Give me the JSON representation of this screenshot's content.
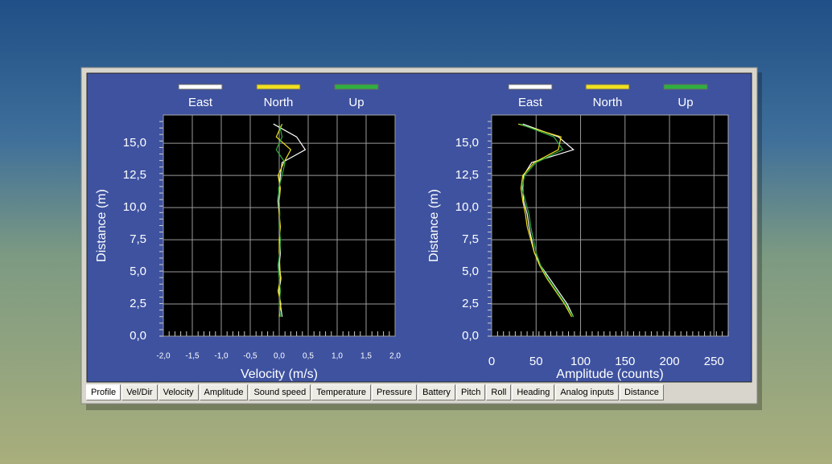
{
  "chart_data": [
    {
      "type": "line",
      "xlabel": "Velocity (m/s)",
      "ylabel": "Distance (m)",
      "y": [
        1.5,
        2.5,
        3.5,
        4.5,
        5.5,
        6.5,
        7.5,
        8.5,
        9.5,
        10.5,
        11.5,
        12.5,
        13.5,
        14.5,
        15.5,
        16.5
      ],
      "series": [
        {
          "name": "East",
          "color": "#ffffff",
          "values": [
            0.05,
            0.02,
            0.0,
            0.03,
            0.0,
            0.02,
            0.01,
            0.0,
            0.0,
            -0.02,
            0.0,
            0.02,
            0.05,
            0.45,
            0.3,
            -0.1
          ]
        },
        {
          "name": "North",
          "color": "#f0e020",
          "values": [
            0.0,
            0.03,
            -0.02,
            0.02,
            0.01,
            0.0,
            0.0,
            0.02,
            0.0,
            0.0,
            0.02,
            -0.02,
            0.08,
            0.2,
            -0.05,
            0.05
          ]
        },
        {
          "name": "Up",
          "color": "#30b040",
          "values": [
            0.02,
            0.0,
            0.02,
            0.0,
            -0.02,
            0.01,
            0.02,
            0.0,
            0.01,
            0.0,
            -0.01,
            0.05,
            0.1,
            -0.05,
            0.05,
            0.0
          ]
        }
      ],
      "xlim": [
        -2,
        2
      ],
      "xticks": [
        {
          "value": -2,
          "label": "-2,0"
        },
        {
          "value": -1.5,
          "label": "-1,5"
        },
        {
          "value": -1,
          "label": "-1,0"
        },
        {
          "value": -0.5,
          "label": "-0,5"
        },
        {
          "value": 0,
          "label": "0,0"
        },
        {
          "value": 0.5,
          "label": "0,5"
        },
        {
          "value": 1,
          "label": "1,0"
        },
        {
          "value": 1.5,
          "label": "1,5"
        },
        {
          "value": 2,
          "label": "2,0"
        }
      ],
      "ylim": [
        0,
        17.2
      ],
      "yticks": [
        {
          "value": 0,
          "label": "0,0"
        },
        {
          "value": 2.5,
          "label": "2,5"
        },
        {
          "value": 5,
          "label": "5,0"
        },
        {
          "value": 7.5,
          "label": "7,5"
        },
        {
          "value": 10,
          "label": "10,0"
        },
        {
          "value": 12.5,
          "label": "12,5"
        },
        {
          "value": 15,
          "label": "15,0"
        }
      ],
      "grid": true
    },
    {
      "type": "line",
      "xlabel": "Amplitude (counts)",
      "ylabel": "Distance (m)",
      "y": [
        1.5,
        2.5,
        3.5,
        4.5,
        5.5,
        6.5,
        7.5,
        8.5,
        9.5,
        10.5,
        11.5,
        12.5,
        13.5,
        14.5,
        15.5,
        16.5
      ],
      "series": [
        {
          "name": "East",
          "color": "#ffffff",
          "values": [
            92,
            85,
            75,
            65,
            55,
            48,
            45,
            42,
            40,
            36,
            35,
            36,
            45,
            92,
            75,
            35
          ]
        },
        {
          "name": "North",
          "color": "#f0e020",
          "values": [
            90,
            82,
            72,
            62,
            54,
            48,
            44,
            40,
            38,
            35,
            33,
            35,
            48,
            75,
            78,
            30
          ]
        },
        {
          "name": "Up",
          "color": "#30b040",
          "values": [
            92,
            83,
            73,
            63,
            55,
            50,
            47,
            44,
            42,
            38,
            34,
            37,
            50,
            80,
            70,
            32
          ]
        }
      ],
      "xlim": [
        0,
        266
      ],
      "xticks": [
        0,
        50,
        100,
        150,
        200,
        250
      ],
      "ylim": [
        0,
        17.2
      ],
      "yticks": [
        {
          "value": 0,
          "label": "0,0"
        },
        {
          "value": 2.5,
          "label": "2,5"
        },
        {
          "value": 5,
          "label": "5,0"
        },
        {
          "value": 7.5,
          "label": "7,5"
        },
        {
          "value": 10,
          "label": "10,0"
        },
        {
          "value": 12.5,
          "label": "12,5"
        },
        {
          "value": 15,
          "label": "15,0"
        }
      ],
      "grid": true
    }
  ],
  "tabs": [
    "Profile",
    "Vel/Dir",
    "Velocity",
    "Amplitude",
    "Sound speed",
    "Temperature",
    "Pressure",
    "Battery",
    "Pitch",
    "Roll",
    "Heading",
    "Analog inputs",
    "Distance"
  ]
}
